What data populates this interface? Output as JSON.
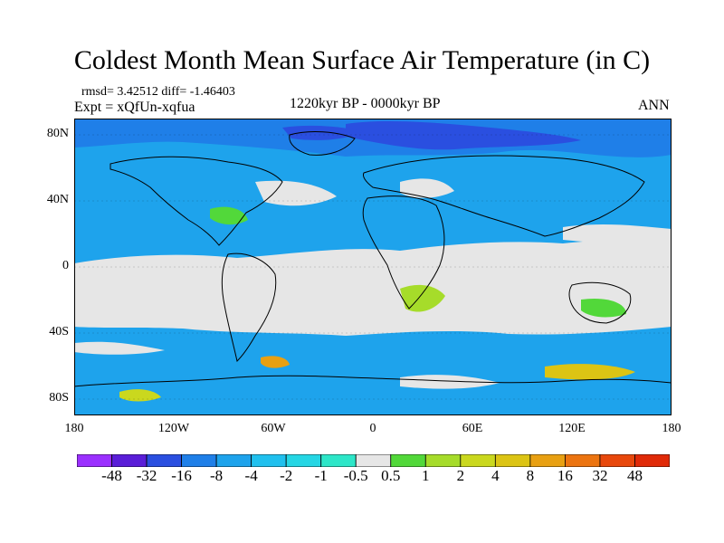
{
  "title": "Coldest Month Mean Surface Air Temperature (in C)",
  "stats": "rmsd= 3.42512  diff= -1.46403",
  "experiment": "Expt = xQfUn-xqfua",
  "period": "1220kyr BP - 0000kyr BP",
  "season": "ANN",
  "lat_labels": [
    "80N",
    "40N",
    "0",
    "40S",
    "80S"
  ],
  "lat_values": [
    80,
    40,
    0,
    -40,
    -80
  ],
  "lon_labels": [
    "180",
    "120W",
    "60W",
    "0",
    "60E",
    "120E",
    "180"
  ],
  "lon_values": [
    -180,
    -120,
    -60,
    0,
    60,
    120,
    180
  ],
  "colorbar": {
    "labels": [
      "-48",
      "-32",
      "-16",
      "-8",
      "-4",
      "-2",
      "-1",
      "-0.5",
      "0.5",
      "1",
      "2",
      "4",
      "8",
      "16",
      "32",
      "48"
    ],
    "colors": [
      "#9b30ff",
      "#5a1ed8",
      "#2a4fe0",
      "#1f7fe8",
      "#1ea3ec",
      "#20c0ee",
      "#25d6e4",
      "#2de6c8",
      "#e6e6e6",
      "#52d83a",
      "#a6dc2a",
      "#cad81e",
      "#dcc414",
      "#e8a012",
      "#ec7410",
      "#e8480c",
      "#e02a08"
    ]
  }
}
